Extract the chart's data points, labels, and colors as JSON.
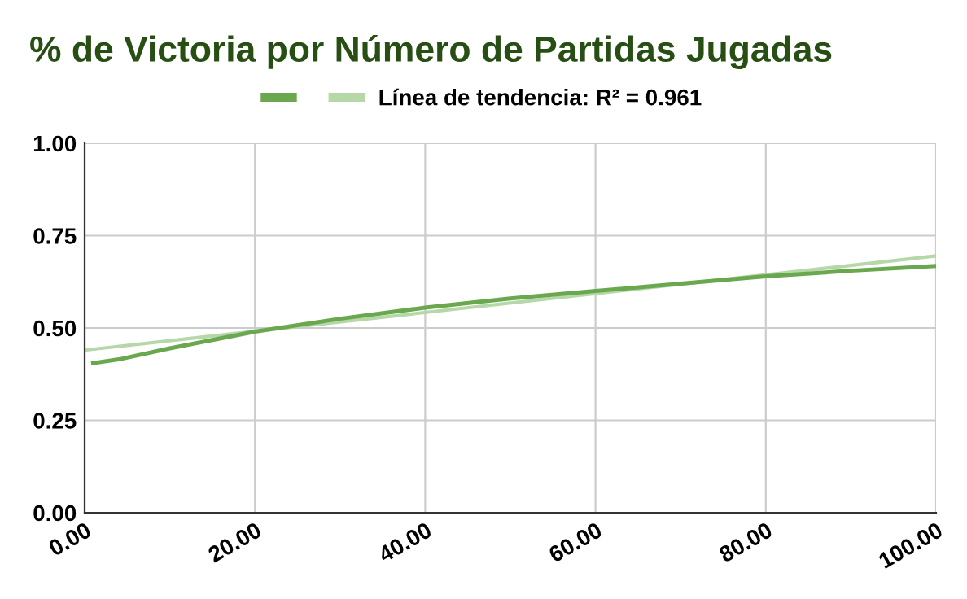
{
  "chart_data": {
    "type": "line",
    "title": "% de Victoria por Número de Partidas Jugadas",
    "series": [
      {
        "color": "#6aa84f",
        "x": [
          1,
          4,
          10,
          20,
          30,
          40,
          50,
          60,
          70,
          80,
          90,
          100
        ],
        "values": [
          0.405,
          0.415,
          0.445,
          0.49,
          0.525,
          0.555,
          0.58,
          0.6,
          0.62,
          0.64,
          0.655,
          0.668
        ]
      },
      {
        "name": "Línea de tendencia: R² = 0.961",
        "color": "#b6d7a8",
        "x": [
          0,
          100
        ],
        "values": [
          0.44,
          0.695
        ]
      }
    ],
    "xlim": [
      0,
      100
    ],
    "xticks": [
      {
        "value": 0,
        "label": "0.00"
      },
      {
        "value": 20,
        "label": "20.00"
      },
      {
        "value": 40,
        "label": "40.00"
      },
      {
        "value": 60,
        "label": "60.00"
      },
      {
        "value": 80,
        "label": "80.00"
      },
      {
        "value": 100,
        "label": "100.00"
      }
    ],
    "ylim": [
      0,
      1
    ],
    "yticks": [
      {
        "value": 0,
        "label": "0.00"
      },
      {
        "value": 0.25,
        "label": "0.25"
      },
      {
        "value": 0.5,
        "label": "0.50"
      },
      {
        "value": 0.75,
        "label": "0.75"
      },
      {
        "value": 1,
        "label": "1.00"
      }
    ],
    "grid": true,
    "legend": "top",
    "marker": "none",
    "line_style": "solid"
  }
}
